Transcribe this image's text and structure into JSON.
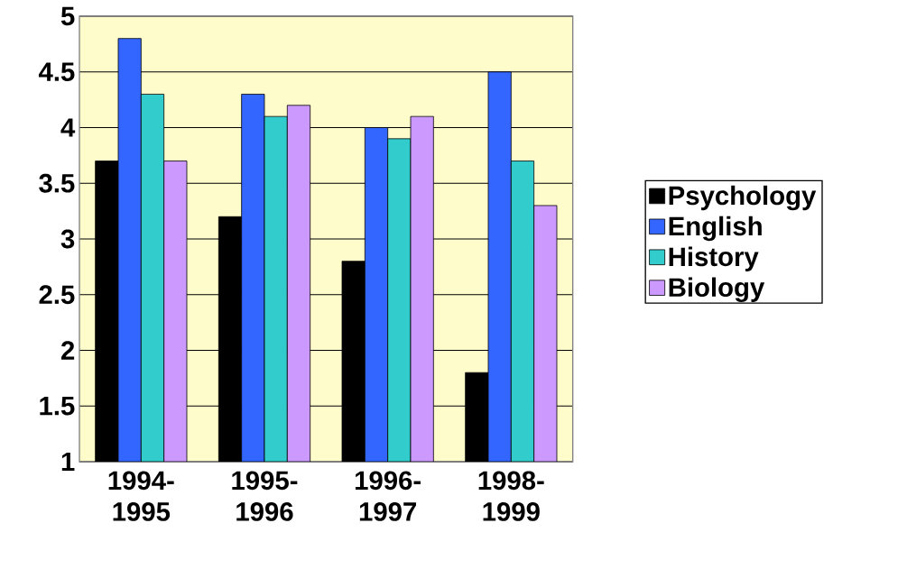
{
  "chart_data": {
    "type": "bar",
    "categories": [
      "1994-1995",
      "1995-1996",
      "1996-1997",
      "1998-1999"
    ],
    "series": [
      {
        "name": "Psychology",
        "color": "#000000",
        "values": [
          3.7,
          3.2,
          2.8,
          1.8
        ]
      },
      {
        "name": "English",
        "color": "#3366ff",
        "values": [
          4.8,
          4.3,
          4.0,
          4.5
        ]
      },
      {
        "name": "History",
        "color": "#33cccc",
        "values": [
          4.3,
          4.1,
          3.9,
          3.7
        ]
      },
      {
        "name": "Biology",
        "color": "#cc99ff",
        "values": [
          3.7,
          4.2,
          4.1,
          3.3
        ]
      }
    ],
    "ylim": [
      1,
      5
    ],
    "yticks": [
      1,
      1.5,
      2,
      2.5,
      3,
      3.5,
      4,
      4.5,
      5
    ],
    "grid": "y",
    "legend": "right"
  }
}
